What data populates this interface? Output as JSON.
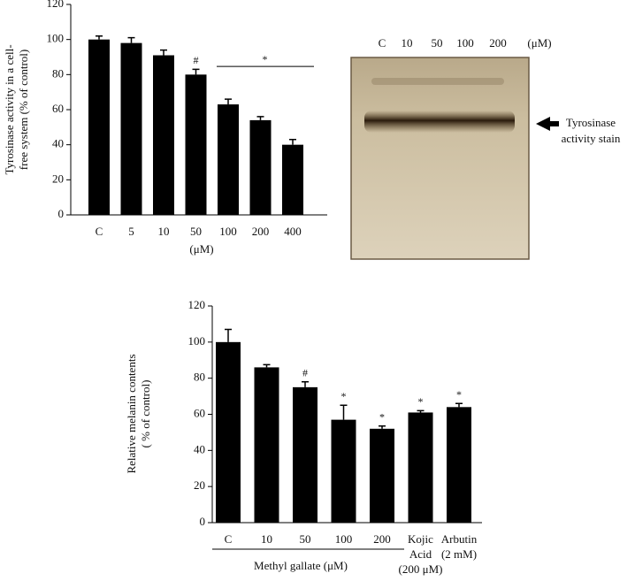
{
  "chart_data": [
    {
      "type": "bar",
      "y_label": [
        "Tyrosinase activity in a cell-",
        "free system (% of control)"
      ],
      "x_label": "(μM)",
      "categories": [
        "C",
        "5",
        "10",
        "50",
        "100",
        "200",
        "400"
      ],
      "values": [
        100,
        98,
        91,
        80,
        63,
        54,
        40
      ],
      "errors": [
        2,
        3,
        3,
        3,
        3,
        2,
        3
      ],
      "color": "#000000",
      "ylim": [
        0,
        120
      ],
      "yticks": [
        0,
        20,
        40,
        60,
        80,
        100,
        120
      ],
      "annotations": [
        {
          "text": "#",
          "index": 3
        },
        {
          "text": "*",
          "from": 4,
          "to": 6
        }
      ]
    },
    {
      "type": "bar",
      "y_label": [
        "Relative melanin contents",
        "( % of control)"
      ],
      "group_label": "Methyl gallate (μM)",
      "categories": [
        "C",
        "10",
        "50",
        "100",
        "200",
        [
          "Kojic",
          "Acid",
          "(200 μM)"
        ],
        [
          "Arbutin",
          "(2 mM)"
        ]
      ],
      "values": [
        100,
        86,
        75,
        57,
        52,
        61,
        64
      ],
      "errors": [
        7,
        1.5,
        3,
        8,
        1.5,
        1,
        2
      ],
      "color": "#000000",
      "ylim": [
        0,
        120
      ],
      "yticks": [
        0,
        20,
        40,
        60,
        80,
        100,
        120
      ],
      "annotations": [
        {
          "text": "#",
          "index": 2
        },
        {
          "text": "*",
          "index": 3
        },
        {
          "text": "*",
          "index": 4
        },
        {
          "text": "*",
          "index": 5
        },
        {
          "text": "*",
          "index": 6
        }
      ]
    }
  ],
  "gel": {
    "lane_labels": [
      "C",
      "10",
      "50",
      "100",
      "200"
    ],
    "unit": "(μM)",
    "annotation": [
      "Tyrosinase",
      "activity stain"
    ]
  }
}
